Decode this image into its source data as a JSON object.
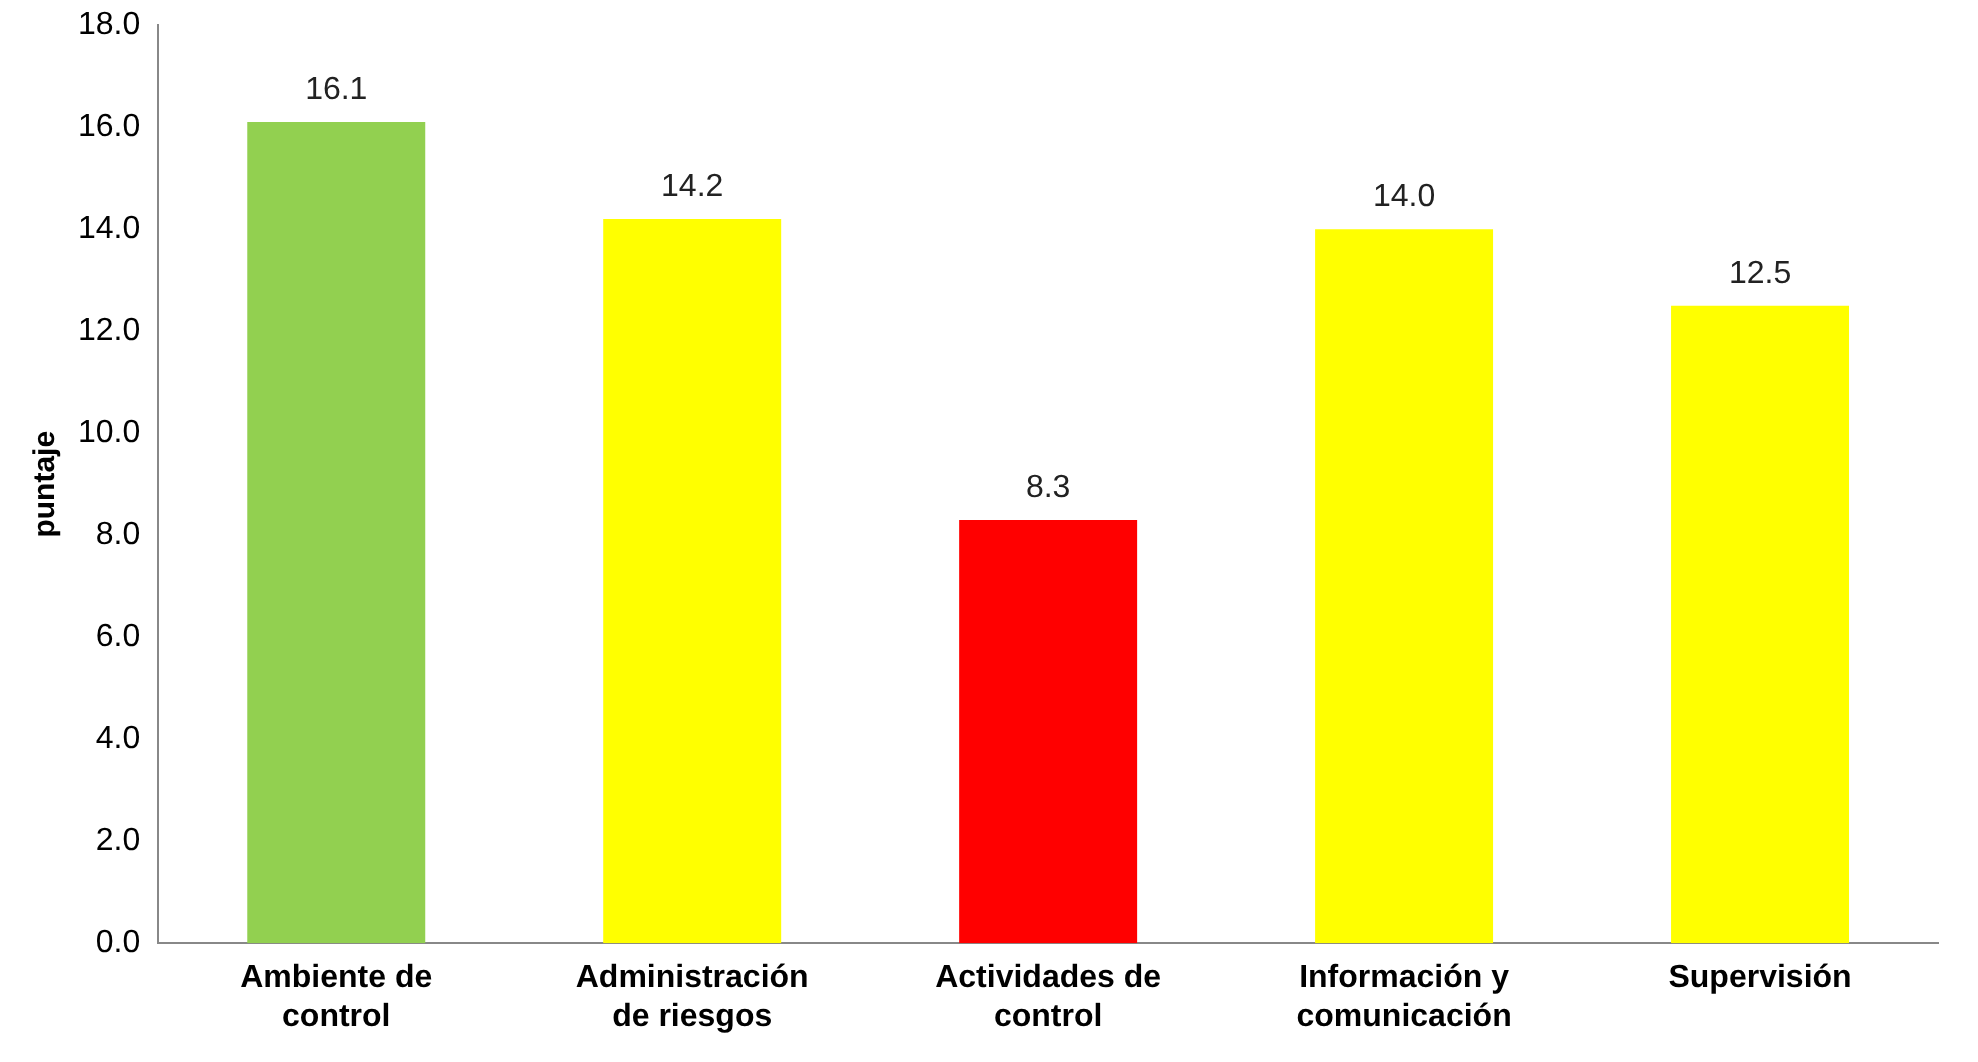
{
  "chart_data": {
    "type": "bar",
    "ylabel": "puntaje",
    "categories": [
      "Ambiente de control",
      "Administración de riesgos",
      "Actividades de control",
      "Información y comunicación",
      "Supervisión"
    ],
    "values": [
      16.1,
      14.2,
      8.3,
      14.0,
      12.5
    ],
    "colors": [
      "#92d050",
      "#ffff00",
      "#ff0000",
      "#ffff00",
      "#ffff00"
    ],
    "value_labels": [
      "16.1",
      "14.2",
      "8.3",
      "14.0",
      "12.5"
    ],
    "ylim": [
      0,
      18
    ],
    "yticks": [
      {
        "value": 0,
        "label": "0.0"
      },
      {
        "value": 2,
        "label": "2.0"
      },
      {
        "value": 4,
        "label": "4.0"
      },
      {
        "value": 6,
        "label": "6.0"
      },
      {
        "value": 8,
        "label": "8.0"
      },
      {
        "value": 10,
        "label": "10.0"
      },
      {
        "value": 12,
        "label": "12.0"
      },
      {
        "value": 14,
        "label": "14.0"
      },
      {
        "value": 16,
        "label": "16.0"
      },
      {
        "value": 18,
        "label": "18.0"
      }
    ],
    "grid": false,
    "legend": false
  }
}
